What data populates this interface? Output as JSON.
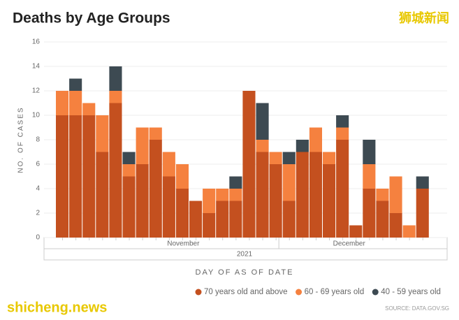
{
  "chart_data": {
    "type": "stacked_bar",
    "title": "Deaths by Age Groups",
    "watermark_top": "狮城新闻",
    "watermark_bottom": "shicheng.news",
    "y_label": "NO. OF CASES",
    "x_label": "DAY OF AS OF DATE",
    "months": [
      "November",
      "December"
    ],
    "year": "2021",
    "source": "SOURCE: DATA.GOV.SG",
    "categories": [
      null,
      null,
      null,
      null,
      null,
      null,
      null,
      null,
      null,
      null,
      null,
      null,
      null,
      null,
      null,
      null,
      null,
      null,
      null,
      null,
      null,
      null,
      null,
      null,
      null,
      null,
      null,
      null
    ],
    "series": [
      {
        "name": "70 years old and above",
        "color": "#c4501f",
        "values": [
          10,
          10,
          10,
          7,
          11,
          5,
          6,
          8,
          5,
          4,
          3,
          2,
          3,
          3,
          12,
          7,
          6,
          3,
          7,
          7,
          6,
          8,
          1,
          4,
          3,
          2,
          0,
          4
        ]
      },
      {
        "name": "60 - 69 years old",
        "color": "#f5813f",
        "values": [
          2,
          2,
          1,
          3,
          1,
          1,
          3,
          1,
          2,
          2,
          0,
          2,
          1,
          1,
          0,
          1,
          1,
          3,
          0,
          2,
          1,
          1,
          0,
          2,
          1,
          3,
          1,
          0
        ]
      },
      {
        "name": "40 - 59 years old",
        "color": "#3d4a52",
        "values": [
          0,
          1,
          0,
          0,
          2,
          1,
          0,
          0,
          0,
          0,
          0,
          0,
          0,
          1,
          0,
          3,
          0,
          1,
          1,
          0,
          0,
          1,
          0,
          2,
          0,
          0,
          0,
          1
        ]
      }
    ],
    "ylim": [
      0,
      16
    ],
    "yticks": [
      0,
      2,
      4,
      6,
      8,
      10,
      12,
      14,
      16
    ],
    "grid": true
  }
}
